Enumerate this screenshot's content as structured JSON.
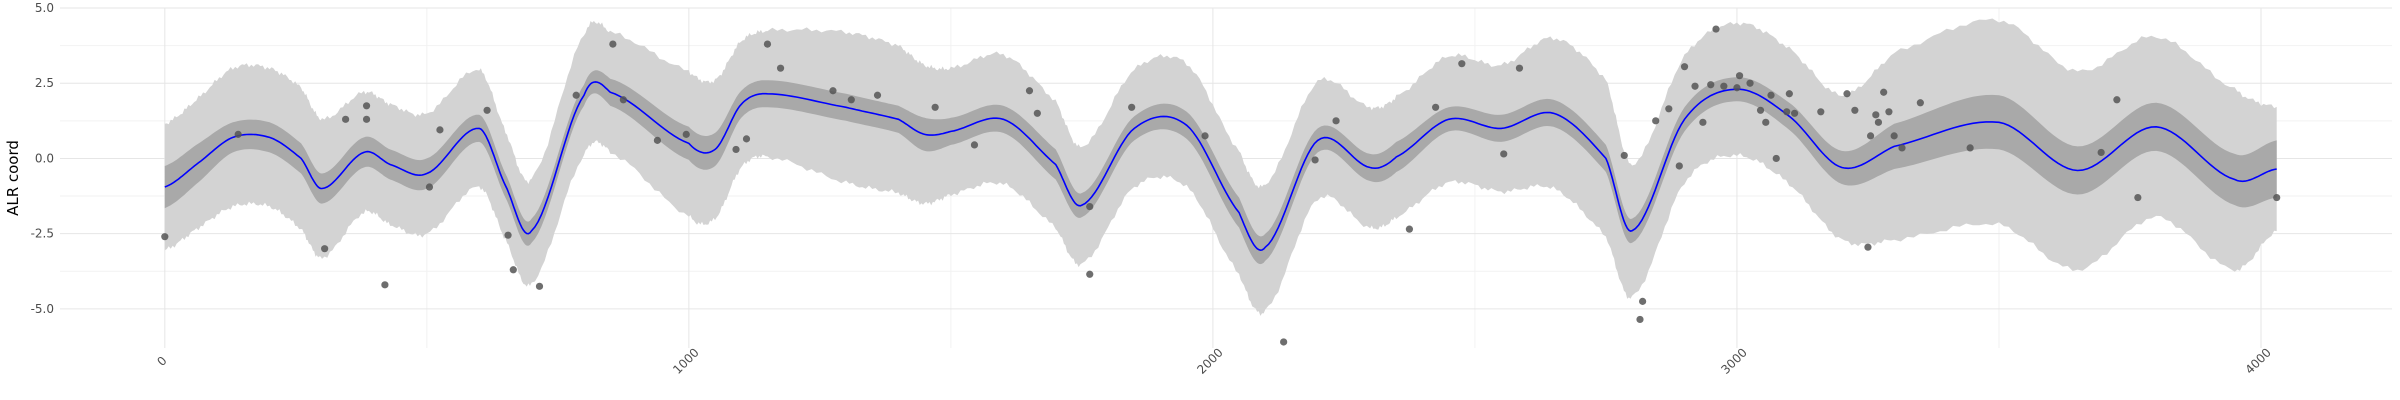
{
  "chart_data": {
    "type": "line",
    "title": "",
    "xlabel": "",
    "ylabel": "ALR coord",
    "xlim": [
      -200,
      4250
    ],
    "ylim": [
      -6.3,
      5.0
    ],
    "x_ticks": [
      0,
      1000,
      2000,
      3000,
      4000
    ],
    "x_tick_labels": [
      "0",
      "1000",
      "2000",
      "3000",
      "4000"
    ],
    "y_ticks": [
      -5.0,
      -2.5,
      0.0,
      2.5,
      5.0
    ],
    "y_tick_labels": [
      "-5.0",
      "-2.5",
      "0.0",
      "2.5",
      "5.0"
    ],
    "grid": true,
    "legend": "none",
    "colors": {
      "mean_line": "#0000ff",
      "inner_band": "#a9a9a9",
      "outer_band": "#d3d3d3",
      "points": "#555555"
    },
    "mean_curve": {
      "x": [
        0,
        60,
        130,
        200,
        260,
        300,
        380,
        430,
        500,
        600,
        650,
        700,
        800,
        850,
        1000,
        1050,
        1100,
        1150,
        1300,
        1400,
        1450,
        1500,
        1600,
        1700,
        1750,
        1850,
        1950,
        2050,
        2100,
        2200,
        2300,
        2350,
        2450,
        2550,
        2650,
        2750,
        2800,
        2900,
        3000,
        3100,
        3200,
        3300,
        3500,
        3650,
        3800,
        3950,
        4030
      ],
      "y": [
        -0.95,
        -0.2,
        0.7,
        0.7,
        0.0,
        -1.0,
        0.2,
        -0.2,
        -0.5,
        1.0,
        -0.9,
        -2.4,
        2.1,
        2.2,
        0.5,
        0.3,
        1.8,
        2.15,
        1.7,
        1.3,
        0.8,
        0.9,
        1.3,
        -0.2,
        -1.55,
        1.0,
        1.1,
        -1.8,
        -2.95,
        0.6,
        -0.3,
        0.05,
        1.3,
        1.0,
        1.5,
        0.0,
        -2.4,
        1.3,
        2.3,
        1.4,
        -0.3,
        0.4,
        1.2,
        -0.4,
        1.05,
        -0.7,
        -0.35
      ]
    },
    "inner_band": {
      "half_width": [
        0.7,
        0.65,
        0.5,
        0.5,
        0.5,
        0.5,
        0.5,
        0.5,
        0.5,
        0.45,
        0.4,
        0.4,
        0.35,
        0.45,
        0.55,
        0.55,
        0.45,
        0.45,
        0.45,
        0.45,
        0.55,
        0.45,
        0.45,
        0.5,
        0.4,
        0.4,
        0.45,
        0.5,
        0.45,
        0.4,
        0.45,
        0.5,
        0.4,
        0.45,
        0.45,
        0.45,
        0.4,
        0.4,
        0.4,
        0.45,
        0.55,
        0.75,
        0.9,
        0.8,
        0.8,
        0.85,
        0.95
      ]
    },
    "outer_band": {
      "half_width": [
        2.1,
        2.15,
        2.3,
        2.3,
        2.35,
        2.3,
        2.0,
        2.0,
        2.0,
        1.95,
        1.8,
        1.75,
        2.0,
        2.0,
        2.4,
        2.3,
        2.1,
        2.1,
        2.5,
        2.45,
        2.3,
        2.1,
        2.15,
        2.1,
        1.95,
        1.95,
        2.05,
        2.05,
        2.1,
        1.95,
        2.0,
        2.0,
        2.1,
        2.1,
        2.5,
        2.6,
        2.2,
        2.1,
        2.2,
        2.25,
        2.4,
        3.1,
        3.4,
        3.3,
        3.0,
        3.0,
        2.05
      ]
    },
    "points": {
      "x": [
        0,
        140,
        305,
        345,
        385,
        385,
        420,
        505,
        525,
        615,
        655,
        665,
        715,
        785,
        855,
        875,
        940,
        995,
        1090,
        1110,
        1150,
        1175,
        1275,
        1310,
        1360,
        1470,
        1545,
        1650,
        1665,
        1765,
        1765,
        1845,
        1985,
        2135,
        2195,
        2235,
        2375,
        2425,
        2475,
        2555,
        2585,
        2785,
        2815,
        2820,
        2845,
        2870,
        2890,
        2900,
        2920,
        2935,
        2950,
        2960,
        2975,
        3000,
        3005,
        3025,
        3045,
        3055,
        3065,
        3075,
        3095,
        3100,
        3110,
        3160,
        3210,
        3225,
        3250,
        3255,
        3265,
        3270,
        3280,
        3290,
        3300,
        3315,
        3350,
        3445,
        3695,
        3725,
        3765,
        4030
      ],
      "y": [
        -2.6,
        0.8,
        -3.0,
        1.3,
        1.75,
        1.3,
        -4.2,
        -0.95,
        0.95,
        1.6,
        -2.55,
        -3.7,
        -4.25,
        2.1,
        3.8,
        1.95,
        0.6,
        0.8,
        0.3,
        0.65,
        3.8,
        3.0,
        2.25,
        1.95,
        2.1,
        1.7,
        0.45,
        2.25,
        1.5,
        -1.6,
        -3.85,
        1.7,
        0.75,
        -6.1,
        -0.05,
        1.25,
        -2.35,
        1.7,
        3.15,
        0.15,
        3.0,
        0.1,
        -5.35,
        -4.75,
        1.25,
        1.65,
        -0.25,
        3.05,
        2.4,
        1.2,
        2.45,
        4.3,
        2.4,
        2.35,
        2.75,
        2.5,
        1.6,
        1.2,
        2.1,
        0.0,
        1.55,
        2.15,
        1.5,
        1.55,
        2.15,
        1.6,
        -2.95,
        0.75,
        1.45,
        1.2,
        2.2,
        1.55,
        0.75,
        0.35,
        1.85,
        0.35,
        0.2,
        1.95,
        -1.3,
        -1.3
      ]
    }
  }
}
